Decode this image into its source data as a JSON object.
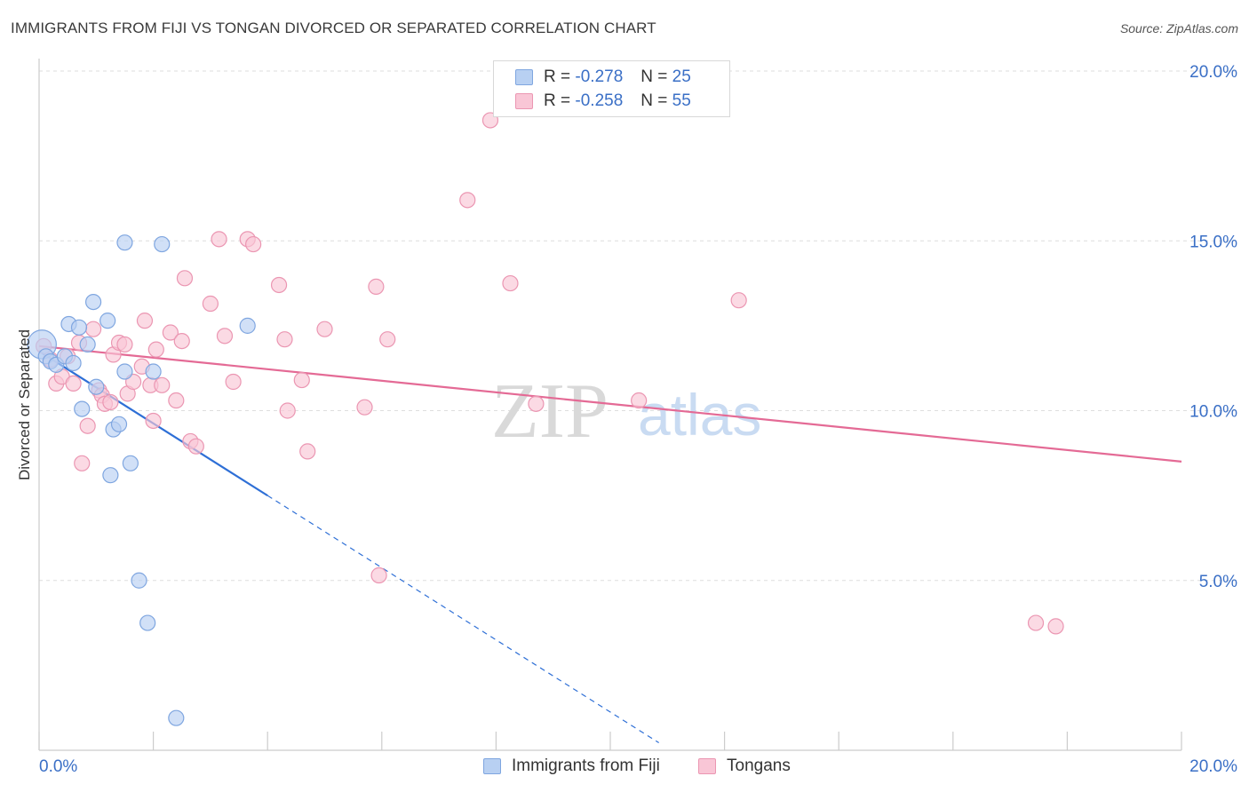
{
  "header": {
    "title": "IMMIGRANTS FROM FIJI VS TONGAN DIVORCED OR SEPARATED CORRELATION CHART",
    "source": "Source: ZipAtlas.com"
  },
  "legend_top": {
    "rows": [
      {
        "r_label": "R =",
        "r_value": "-0.278",
        "n_label": "N =",
        "n_value": "25",
        "color": "#b8d0f2",
        "border": "#7fa6e0"
      },
      {
        "r_label": "R =",
        "r_value": "-0.258",
        "n_label": "N =",
        "n_value": "55",
        "color": "#f9c6d6",
        "border": "#eb96b2"
      }
    ]
  },
  "legend_bottom": [
    {
      "label": "Immigrants from Fiji",
      "color": "#b8d0f2",
      "border": "#7fa6e0"
    },
    {
      "label": "Tongans",
      "color": "#f9c6d6",
      "border": "#eb96b2"
    }
  ],
  "watermark": {
    "zip": "ZIP",
    "atlas": "atlas"
  },
  "colors": {
    "accent_blue": "#3a6fc6",
    "fiji_line": "#2e6fd6",
    "tongan_line": "#e46a95"
  },
  "chart_data": {
    "type": "scatter",
    "title": "IMMIGRANTS FROM FIJI VS TONGAN DIVORCED OR SEPARATED CORRELATION CHART",
    "xlabel": "",
    "ylabel": "Divorced or Separated",
    "xlim": [
      0,
      0.2
    ],
    "ylim": [
      0,
      0.2
    ],
    "x_tick_labels": [
      "0.0%",
      "20.0%"
    ],
    "y_ticks": [
      0.05,
      0.1,
      0.15,
      0.2
    ],
    "y_tick_labels": [
      "5.0%",
      "10.0%",
      "15.0%",
      "20.0%"
    ],
    "grid": true,
    "legend_position": "top-center",
    "series": [
      {
        "name": "Immigrants from Fiji",
        "color": "#b8d0f2",
        "edge": "#7fa6e0",
        "points": [
          [
            0.0005,
            0.1195
          ],
          [
            0.0012,
            0.116
          ],
          [
            0.002,
            0.1145
          ],
          [
            0.003,
            0.1135
          ],
          [
            0.0045,
            0.116
          ],
          [
            0.006,
            0.114
          ],
          [
            0.0052,
            0.1255
          ],
          [
            0.007,
            0.1245
          ],
          [
            0.0075,
            0.1005
          ],
          [
            0.0085,
            0.1195
          ],
          [
            0.0095,
            0.132
          ],
          [
            0.01,
            0.107
          ],
          [
            0.012,
            0.1265
          ],
          [
            0.013,
            0.0945
          ],
          [
            0.014,
            0.096
          ],
          [
            0.015,
            0.1115
          ],
          [
            0.016,
            0.0845
          ],
          [
            0.0125,
            0.081
          ],
          [
            0.015,
            0.1495
          ],
          [
            0.02,
            0.1115
          ],
          [
            0.0215,
            0.149
          ],
          [
            0.0365,
            0.125
          ],
          [
            0.0175,
            0.05
          ],
          [
            0.019,
            0.0375
          ],
          [
            0.024,
            0.0095
          ]
        ],
        "sizes": [
          1.9,
          1,
          1,
          1,
          1,
          1,
          1,
          1,
          1,
          1,
          1,
          1,
          1,
          1,
          1,
          1,
          1,
          1,
          1,
          1,
          1,
          1,
          1,
          1,
          1
        ],
        "trend": {
          "x0": 0.0,
          "y0": 0.1175,
          "x1": 0.04,
          "y1": 0.075,
          "dash_to_x": 0.1085
        }
      },
      {
        "name": "Tongans",
        "color": "#f9c6d6",
        "edge": "#eb96b2",
        "points": [
          [
            0.0008,
            0.119
          ],
          [
            0.002,
            0.115
          ],
          [
            0.003,
            0.108
          ],
          [
            0.004,
            0.11
          ],
          [
            0.005,
            0.116
          ],
          [
            0.006,
            0.108
          ],
          [
            0.007,
            0.12
          ],
          [
            0.0075,
            0.0845
          ],
          [
            0.0085,
            0.0955
          ],
          [
            0.0095,
            0.124
          ],
          [
            0.0105,
            0.106
          ],
          [
            0.011,
            0.1045
          ],
          [
            0.0115,
            0.102
          ],
          [
            0.0125,
            0.1025
          ],
          [
            0.013,
            0.1165
          ],
          [
            0.014,
            0.12
          ],
          [
            0.015,
            0.1195
          ],
          [
            0.0155,
            0.105
          ],
          [
            0.0165,
            0.1085
          ],
          [
            0.018,
            0.113
          ],
          [
            0.0185,
            0.1265
          ],
          [
            0.0195,
            0.1075
          ],
          [
            0.02,
            0.097
          ],
          [
            0.0205,
            0.118
          ],
          [
            0.0215,
            0.1075
          ],
          [
            0.023,
            0.123
          ],
          [
            0.024,
            0.103
          ],
          [
            0.025,
            0.1205
          ],
          [
            0.0255,
            0.139
          ],
          [
            0.0265,
            0.091
          ],
          [
            0.0275,
            0.0895
          ],
          [
            0.03,
            0.1315
          ],
          [
            0.0315,
            0.1505
          ],
          [
            0.0325,
            0.122
          ],
          [
            0.034,
            0.1085
          ],
          [
            0.0365,
            0.1505
          ],
          [
            0.0375,
            0.149
          ],
          [
            0.042,
            0.137
          ],
          [
            0.043,
            0.121
          ],
          [
            0.0435,
            0.1
          ],
          [
            0.046,
            0.109
          ],
          [
            0.047,
            0.088
          ],
          [
            0.05,
            0.124
          ],
          [
            0.057,
            0.101
          ],
          [
            0.059,
            0.1365
          ],
          [
            0.0595,
            0.0515
          ],
          [
            0.061,
            0.121
          ],
          [
            0.075,
            0.162
          ],
          [
            0.079,
            0.1855
          ],
          [
            0.0825,
            0.1375
          ],
          [
            0.087,
            0.102
          ],
          [
            0.105,
            0.103
          ],
          [
            0.1225,
            0.1325
          ],
          [
            0.1745,
            0.0375
          ],
          [
            0.178,
            0.0365
          ]
        ],
        "trend": {
          "x0": 0.0,
          "y0": 0.119,
          "x1": 0.2,
          "y1": 0.085
        }
      }
    ]
  }
}
